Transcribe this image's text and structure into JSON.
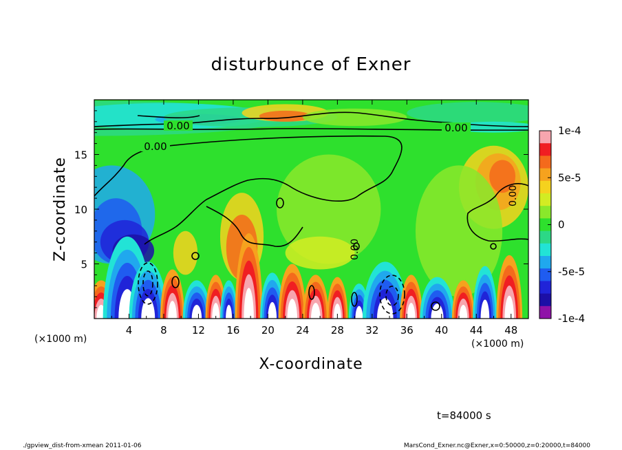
{
  "chart_data": {
    "type": "heatmap",
    "title": "disturbunce of Exner",
    "xlabel": "X-coordinate",
    "ylabel": "Z-coordinate",
    "x_unit_left": "(×1000 m)",
    "x_unit_right": "(×1000 m)",
    "xlim": [
      0,
      50
    ],
    "ylim": [
      0,
      20
    ],
    "xticks": [
      "4",
      "8",
      "12",
      "16",
      "20",
      "24",
      "28",
      "32",
      "36",
      "40",
      "44",
      "48"
    ],
    "yticks": [
      "5",
      "10",
      "15"
    ],
    "colorbar": {
      "range": [
        -0.0001,
        0.0001
      ],
      "labels": [
        "1e-4",
        "5e-5",
        "0",
        "-5e-5",
        "-1e-4"
      ],
      "colors": [
        "#f7a5ae",
        "#f01e22",
        "#f46a1c",
        "#f6a21e",
        "#f5d21e",
        "#d2ec23",
        "#8ae82b",
        "#2ee02d",
        "#2cd886",
        "#22e3d6",
        "#20a8ee",
        "#1f5cf0",
        "#2024d8",
        "#1c0fa6",
        "#8f12a8"
      ]
    },
    "contour_labels": [
      "0.00",
      "0.00",
      "0.00",
      "0.00",
      "0.00"
    ],
    "annotation_time": "t=84000 s",
    "footer_left": "./gpview_dist-from-xmean  2011-01-06",
    "footer_right": "MarsCond_Exner.nc@Exner,x=0:50000,z=0:20000,t=84000"
  }
}
